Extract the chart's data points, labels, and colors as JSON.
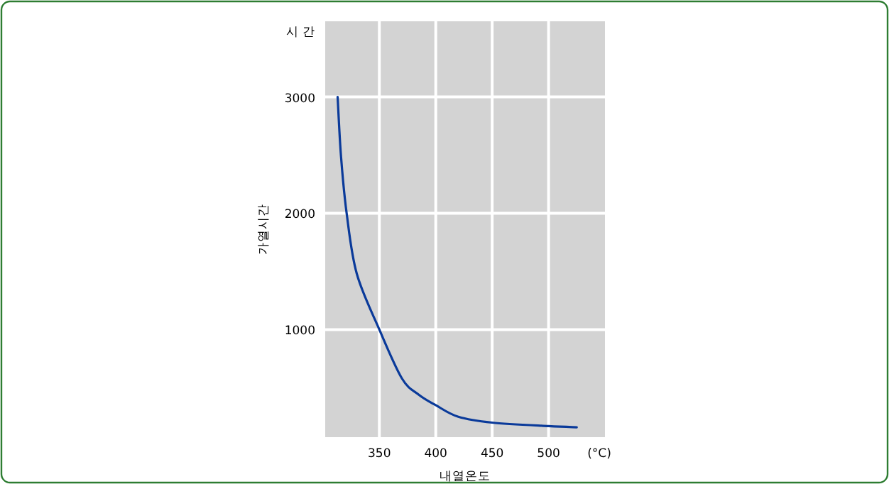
{
  "chart_data": {
    "type": "line",
    "xlabel": "내열온도",
    "ylabel": "가열시간",
    "annotations": [
      "시 간",
      "(°C)"
    ],
    "x": [
      313,
      316,
      321,
      330,
      350,
      370,
      385,
      400,
      420,
      450,
      500,
      525
    ],
    "series": [
      {
        "color": "#0a3a9a",
        "values": [
          3000,
          2490,
          2000,
          1480,
          1000,
          580,
          440,
          350,
          250,
          200,
          170,
          160
        ]
      }
    ],
    "xlim": [
      302,
      550
    ],
    "ylim": [
      75,
      3650
    ],
    "xticks": [
      350,
      400,
      450,
      500
    ],
    "yticks": [
      1000,
      2000,
      3000
    ],
    "grid": true
  }
}
